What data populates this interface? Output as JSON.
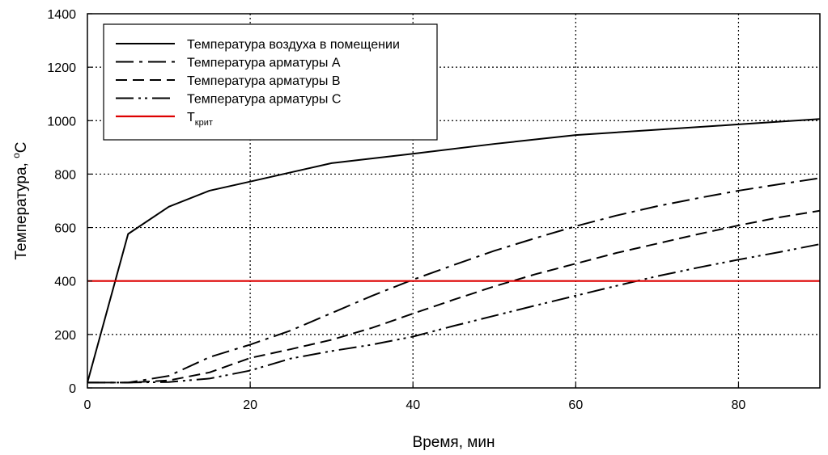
{
  "chart_data": {
    "type": "line",
    "xlabel": "Время, мин",
    "ylabel": "Температура, °C",
    "ylabel_parts": {
      "main": "Температура, ",
      "sup": "o",
      "unit": "C"
    },
    "xlim": [
      0,
      90
    ],
    "ylim": [
      0,
      1400
    ],
    "xticks": [
      0,
      20,
      40,
      60,
      80
    ],
    "yticks": [
      0,
      200,
      400,
      600,
      800,
      1000,
      1200,
      1400
    ],
    "grid": true,
    "legend_position": "top-left",
    "series": [
      {
        "name": "Температура воздуха в помещении",
        "style": "solid",
        "color": "#000000",
        "x": [
          0,
          5,
          10,
          15,
          20,
          30,
          40,
          50,
          60,
          70,
          80,
          90
        ],
        "y": [
          20,
          576,
          678,
          738,
          772,
          841,
          876,
          913,
          946,
          966,
          986,
          1006
        ]
      },
      {
        "name": "Температура арматуры А",
        "style": "dashdot",
        "color": "#000000",
        "x": [
          0,
          5,
          10,
          15,
          20,
          25,
          30,
          35,
          40,
          45,
          50,
          55,
          60,
          65,
          70,
          75,
          80,
          85,
          90
        ],
        "y": [
          20,
          20,
          45,
          115,
          162,
          215,
          280,
          345,
          405,
          460,
          513,
          560,
          605,
          645,
          680,
          710,
          738,
          762,
          785
        ]
      },
      {
        "name": "Температура арматуры В",
        "style": "dashed",
        "color": "#000000",
        "x": [
          0,
          5,
          10,
          15,
          20,
          25,
          30,
          35,
          40,
          45,
          50,
          55,
          60,
          65,
          70,
          75,
          80,
          85,
          90
        ],
        "y": [
          20,
          20,
          28,
          58,
          112,
          145,
          180,
          225,
          278,
          330,
          380,
          425,
          465,
          505,
          540,
          575,
          608,
          638,
          663
        ]
      },
      {
        "name": "Температура арматуры С",
        "style": "dashdotdot",
        "color": "#000000",
        "x": [
          0,
          5,
          10,
          15,
          20,
          25,
          30,
          35,
          40,
          45,
          50,
          55,
          60,
          65,
          70,
          75,
          80,
          85,
          90
        ],
        "y": [
          20,
          20,
          22,
          35,
          65,
          110,
          138,
          162,
          192,
          232,
          270,
          308,
          345,
          382,
          418,
          450,
          480,
          508,
          538
        ]
      },
      {
        "name": "Tкрит",
        "name_parts": {
          "main": "T",
          "sub": "крит"
        },
        "style": "solid",
        "color": "#dd0000",
        "x": [
          0,
          90
        ],
        "y": [
          400,
          400
        ]
      }
    ]
  }
}
